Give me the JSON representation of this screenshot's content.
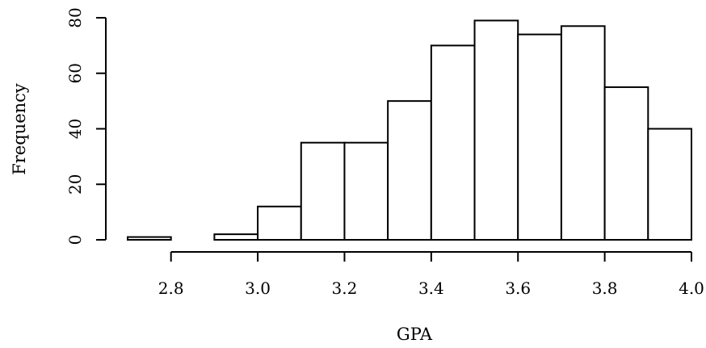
{
  "chart_data": {
    "type": "bar",
    "title": "",
    "xlabel": "GPA",
    "ylabel": "Frequency",
    "bins": [
      {
        "start": 2.7,
        "end": 2.8,
        "count": 1
      },
      {
        "start": 2.8,
        "end": 2.9,
        "count": 0
      },
      {
        "start": 2.9,
        "end": 3.0,
        "count": 2
      },
      {
        "start": 3.0,
        "end": 3.1,
        "count": 12
      },
      {
        "start": 3.1,
        "end": 3.2,
        "count": 35
      },
      {
        "start": 3.2,
        "end": 3.3,
        "count": 35
      },
      {
        "start": 3.3,
        "end": 3.4,
        "count": 50
      },
      {
        "start": 3.4,
        "end": 3.5,
        "count": 70
      },
      {
        "start": 3.5,
        "end": 3.6,
        "count": 79
      },
      {
        "start": 3.6,
        "end": 3.7,
        "count": 74
      },
      {
        "start": 3.7,
        "end": 3.8,
        "count": 77
      },
      {
        "start": 3.8,
        "end": 3.9,
        "count": 55
      },
      {
        "start": 3.9,
        "end": 4.0,
        "count": 40
      }
    ],
    "xlim": [
      2.7,
      4.0
    ],
    "ylim": [
      0,
      80
    ],
    "x_ticks": [
      2.8,
      3.0,
      3.2,
      3.4,
      3.6,
      3.8,
      4.0
    ],
    "x_tick_labels": [
      "2.8",
      "3.0",
      "3.2",
      "3.4",
      "3.6",
      "3.8",
      "4.0"
    ],
    "y_ticks": [
      0,
      20,
      40,
      60,
      80
    ],
    "y_tick_labels": [
      "0",
      "20",
      "40",
      "60",
      "80"
    ],
    "grid": false
  }
}
